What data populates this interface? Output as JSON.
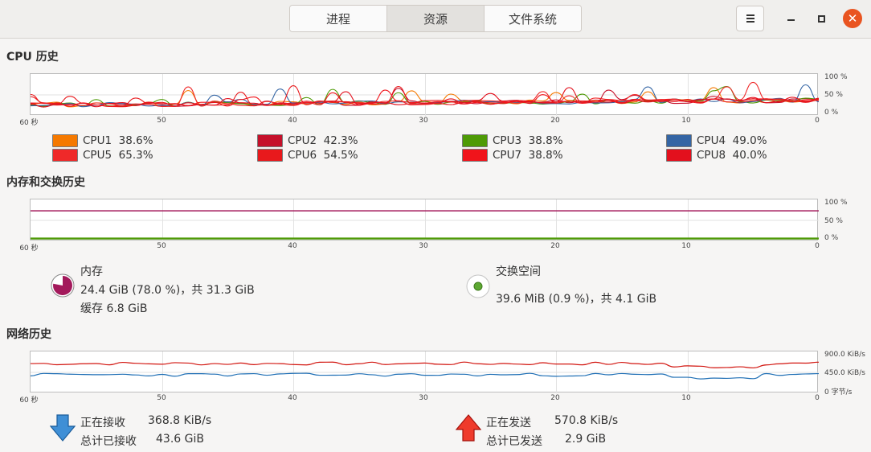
{
  "header": {
    "tabs": [
      {
        "label": "进程",
        "active": false
      },
      {
        "label": "资源",
        "active": true
      },
      {
        "label": "文件系统",
        "active": false
      }
    ],
    "close_glyph": "✕"
  },
  "cpu": {
    "title": "CPU 历史",
    "x_ticks": [
      "60 秒",
      "50",
      "40",
      "30",
      "20",
      "10",
      "0"
    ],
    "y_ticks": [
      "100 %",
      "50 %",
      "0 %"
    ],
    "cores": [
      {
        "name": "CPU1",
        "percent": "38.6%",
        "color": "#f57900"
      },
      {
        "name": "CPU2",
        "percent": "42.3%",
        "color": "#c5102a"
      },
      {
        "name": "CPU3",
        "percent": "38.8%",
        "color": "#4e9a06"
      },
      {
        "name": "CPU4",
        "percent": "49.0%",
        "color": "#3465a4"
      },
      {
        "name": "CPU5",
        "percent": "65.3%",
        "color": "#ef2929"
      },
      {
        "name": "CPU6",
        "percent": "54.5%",
        "color": "#e8191c"
      },
      {
        "name": "CPU7",
        "percent": "38.8%",
        "color": "#f0141b"
      },
      {
        "name": "CPU8",
        "percent": "40.0%",
        "color": "#e3101d"
      }
    ]
  },
  "memory": {
    "title": "内存和交换历史",
    "x_ticks": [
      "60 秒",
      "50",
      "40",
      "30",
      "20",
      "10",
      "0"
    ],
    "y_ticks": [
      "100 %",
      "50 %",
      "0 %"
    ],
    "mem_label": "内存",
    "mem_usage": "24.4 GiB (78.0 %)，共 31.3 GiB",
    "mem_cache": "缓存 6.8 GiB",
    "mem_fraction": 0.78,
    "mem_color": "#a3195b",
    "swap_label": "交换空间",
    "swap_usage": "39.6 MiB (0.9 %)，共 4.1 GiB",
    "swap_fraction": 0.009,
    "swap_color": "#4e9a06"
  },
  "network": {
    "title": "网络历史",
    "x_ticks": [
      "60 秒",
      "50",
      "40",
      "30",
      "20",
      "10",
      "0"
    ],
    "y_ticks": [
      "900.0 KiB/s",
      "450.0 KiB/s",
      "0 字节/s"
    ],
    "recv_label": "正在接收",
    "recv_rate": "368.8 KiB/s",
    "recv_total_label": "总计已接收",
    "recv_total": "43.6 GiB",
    "recv_color": "#1f6fb5",
    "send_label": "正在发送",
    "send_rate": "570.8 KiB/s",
    "send_total_label": "总计已发送",
    "send_total": "2.9 GiB",
    "send_color": "#d2150f"
  }
}
